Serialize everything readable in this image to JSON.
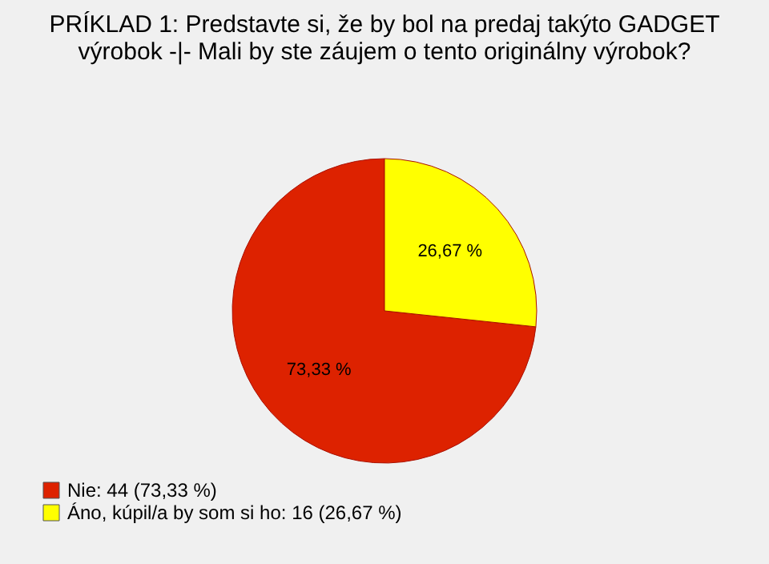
{
  "chart_data": {
    "type": "pie",
    "title": "PRÍKLAD 1: Predstavte si, že by bol na predaj takýto GADGET výrobok -|- Mali by ste záujem o tento originálny výrobok?",
    "categories": [
      "Nie: 44 (73,33 %)",
      "Áno, kúpil/a by som si ho: 16 (26,67 %)"
    ],
    "values": [
      73.33,
      26.67
    ],
    "colors": [
      "#dd2200",
      "#ffff00"
    ],
    "value_labels": [
      "73,33 %",
      "26,67 %"
    ],
    "legend": "bottom left"
  }
}
